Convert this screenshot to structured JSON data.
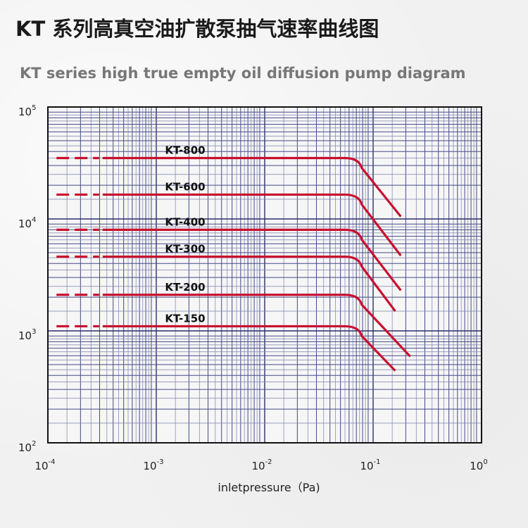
{
  "header": {
    "title_cn": "KT 系列高真空油扩散泵抽气速率曲线图",
    "title_en": "KT series high true empty oil diffusion pump diagram"
  },
  "chart_data": {
    "type": "line",
    "title": "KT 系列高真空油扩散泵抽气速率曲线图",
    "subtitle": "KT series high true empty oil diffusion pump diagram",
    "xlabel": "inletpressure（Pa)",
    "ylabel": "",
    "x_scale": "log",
    "y_scale": "log",
    "xlim": [
      0.0001,
      1
    ],
    "ylim": [
      100,
      100000
    ],
    "grid": true,
    "x_ticks": [
      {
        "base": "10",
        "exp": "-4",
        "value": 0.0001
      },
      {
        "base": "10",
        "exp": "-3",
        "value": 0.001
      },
      {
        "base": "10",
        "exp": "-2",
        "value": 0.01
      },
      {
        "base": "10",
        "exp": "-1",
        "value": 0.1
      },
      {
        "base": "10",
        "exp": "0",
        "value": 1
      }
    ],
    "y_ticks": [
      {
        "base": "10",
        "exp": "2",
        "value": 100
      },
      {
        "base": "10",
        "exp": "3",
        "value": 1000
      },
      {
        "base": "10",
        "exp": "4",
        "value": 10000
      },
      {
        "base": "10",
        "exp": "5",
        "value": 100000
      }
    ],
    "line_color": "#c8102e",
    "series": [
      {
        "name": "KT-800",
        "dashed_from": 0.00012,
        "solid_from": 0.00032,
        "flat_value": 35000,
        "knee": 0.06,
        "end_x": 0.18,
        "end_value": 10500
      },
      {
        "name": "KT-600",
        "dashed_from": 0.00012,
        "solid_from": 0.00032,
        "flat_value": 16500,
        "knee": 0.06,
        "end_x": 0.18,
        "end_value": 4700
      },
      {
        "name": "KT-400",
        "dashed_from": 0.00012,
        "solid_from": 0.00032,
        "flat_value": 8000,
        "knee": 0.06,
        "end_x": 0.18,
        "end_value": 2300
      },
      {
        "name": "KT-300",
        "dashed_from": 0.00012,
        "solid_from": 0.00032,
        "flat_value": 4600,
        "knee": 0.06,
        "end_x": 0.16,
        "end_value": 1500
      },
      {
        "name": "KT-200",
        "dashed_from": 0.00012,
        "solid_from": 0.00032,
        "flat_value": 2100,
        "knee": 0.06,
        "end_x": 0.22,
        "end_value": 590
      },
      {
        "name": "KT-150",
        "dashed_from": 0.00012,
        "solid_from": 0.00032,
        "flat_value": 1100,
        "knee": 0.06,
        "end_x": 0.16,
        "end_value": 440
      }
    ]
  }
}
